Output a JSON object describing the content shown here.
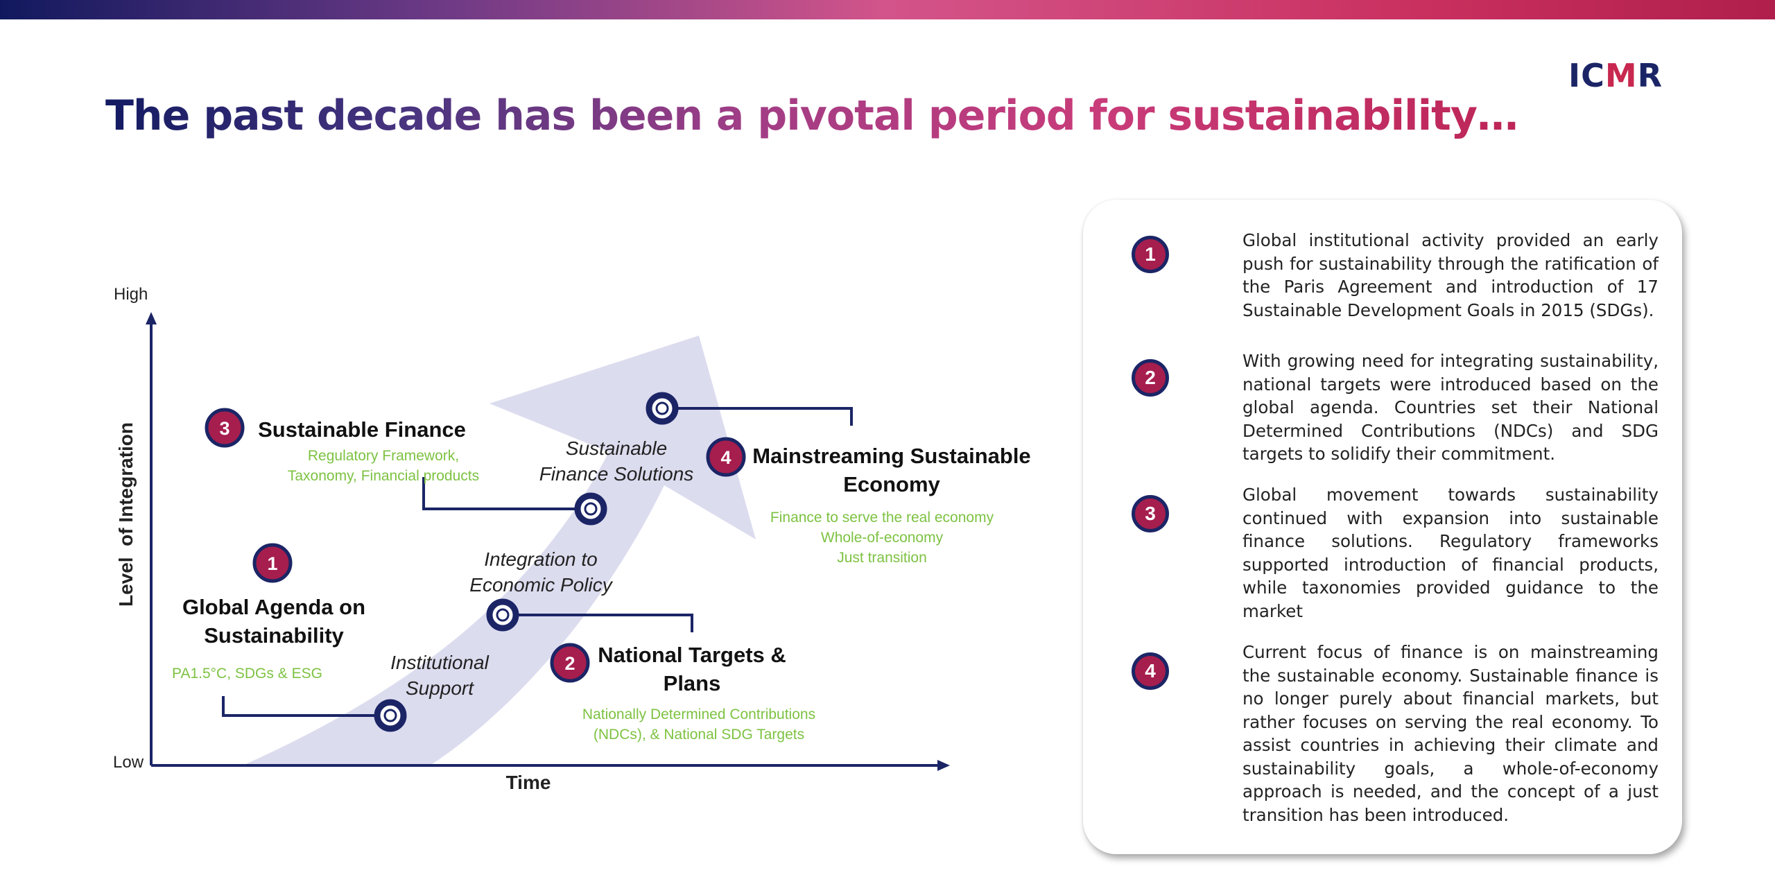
{
  "logo": {
    "text_a": "IC",
    "text_b": "M",
    "text_c": "R"
  },
  "title": "The past decade has been a pivotal period for sustainability…",
  "diagram": {
    "axis": {
      "high": "High",
      "low": "Low",
      "y_label": "Level  of Integration",
      "x_label": "Time"
    },
    "stages": [
      {
        "number": "1",
        "heading_lines": [
          "Global Agenda on",
          "Sustainability"
        ],
        "detail_lines": [
          "PA1.5°C, SDGs & ESG"
        ]
      },
      {
        "number": "2",
        "heading_lines": [
          "National Targets &",
          "Plans"
        ],
        "detail_lines": [
          "Nationally Determined Contributions",
          "(NDCs), & National SDG Targets"
        ]
      },
      {
        "number": "3",
        "heading_lines": [
          "Sustainable Finance"
        ],
        "detail_lines": [
          "Regulatory Framework,",
          "Taxonomy, Financial products"
        ]
      },
      {
        "number": "4",
        "heading_lines": [
          "Mainstreaming Sustainable",
          "Economy"
        ],
        "detail_lines": [
          "Finance to serve the real economy",
          "Whole-of-economy",
          "Just transition"
        ]
      }
    ],
    "milestones": [
      {
        "lines": [
          "Institutional",
          "Support"
        ]
      },
      {
        "lines": [
          "Integration to",
          "Economic Policy"
        ]
      },
      {
        "lines": [
          "Sustainable",
          "Finance Solutions"
        ]
      }
    ]
  },
  "panel": {
    "items": [
      {
        "number": "1",
        "text": "Global institutional activity provided an early push for sustainability through the ratification of the Paris Agreement and introduction of 17 Sustainable Development Goals in 2015 (SDGs)."
      },
      {
        "number": "2",
        "text": "With growing need for integrating sustainability, national targets were introduced based on the global agenda. Countries set their National Determined Contributions (NDCs) and SDG targets to solidify their commitment."
      },
      {
        "number": "3",
        "text": "Global movement towards sustainability continued with expansion into sustainable finance solutions. Regulatory frameworks supported introduction of financial products, while taxonomies provided guidance to the market"
      },
      {
        "number": "4",
        "text": "Current focus of finance is on mainstreaming the sustainable economy. Sustainable finance is no longer purely about financial markets, but rather focuses on serving the real economy. To assist countries in achieving their climate and sustainability goals, a whole-of-economy approach is needed, and the concept of a just transition has been introduced."
      }
    ]
  },
  "colors": {
    "navy": "#1b2566",
    "crimson": "#a61e4d",
    "green": "#7dc242",
    "arrow": "#dcdcef"
  }
}
